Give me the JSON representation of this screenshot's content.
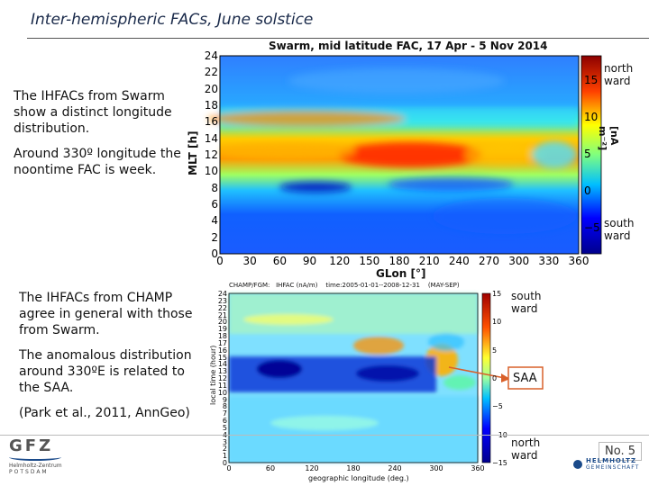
{
  "slide": {
    "title": "Inter-hemispheric FACs, June solstice",
    "para1": "The IHFACs from Swarm show a distinct longitude distribution.",
    "para2": "Around 330º longitude the noontime FAC is week.",
    "para3": "The IHFACs from CHAMP agree in general with those from Swarm.",
    "para4": "The anomalous distribution around 330ºE is related to the SAA.",
    "citation": "(Park et al., 2011, AnnGeo)",
    "slide_number": "No. 5",
    "logo_left_name": "GFZ",
    "logo_left_sub1": "Helmholtz-Zentrum",
    "logo_left_sub2": "POTSDAM",
    "logo_right_name": "HELMHOLTZ",
    "logo_right_sub": "GEMEINSCHAFT"
  },
  "chart_data": [
    {
      "type": "heatmap",
      "title": "Swarm, mid latitude FAC, 17 Apr - 5 Nov 2014",
      "xlabel": "GLon [°]",
      "ylabel": "MLT [h]",
      "x_ticks": [
        "0",
        "30",
        "60",
        "90",
        "120",
        "150",
        "180",
        "210",
        "240",
        "270",
        "300",
        "330",
        "360"
      ],
      "y_ticks": [
        "0",
        "2",
        "4",
        "6",
        "8",
        "10",
        "12",
        "14",
        "16",
        "18",
        "20",
        "22",
        "24"
      ],
      "xlim": [
        0,
        360
      ],
      "ylim": [
        0,
        24
      ],
      "colorbar": {
        "label": "[nA m⁻²]",
        "ticks": [
          "−5",
          "0",
          "5",
          "10",
          "15"
        ],
        "range": [
          -5,
          15
        ],
        "top_label": "north ward",
        "bottom_label": "south ward"
      }
    },
    {
      "type": "heatmap",
      "title": "CHAMP/FGM:   IHFAC (nA/m)    time:2005-01-01--2008-12-31    (MAY-SEP)",
      "xlabel": "geographic longitude (deg.)",
      "ylabel": "local time (hour)",
      "x_ticks": [
        "0",
        "60",
        "120",
        "180",
        "240",
        "300",
        "360"
      ],
      "y_ticks": [
        "0",
        "1",
        "2",
        "3",
        "4",
        "5",
        "6",
        "7",
        "8",
        "9",
        "10",
        "11",
        "12",
        "13",
        "14",
        "15",
        "16",
        "17",
        "18",
        "19",
        "20",
        "21",
        "22",
        "23",
        "24"
      ],
      "xlim": [
        0,
        360
      ],
      "ylim": [
        0,
        24
      ],
      "colorbar": {
        "ticks": [
          "−15",
          "−10",
          "−5",
          "0",
          "5",
          "10",
          "15"
        ],
        "range": [
          -15,
          15
        ],
        "top_label": "south ward",
        "bottom_label": "north ward"
      },
      "annotation": "SAA"
    }
  ]
}
